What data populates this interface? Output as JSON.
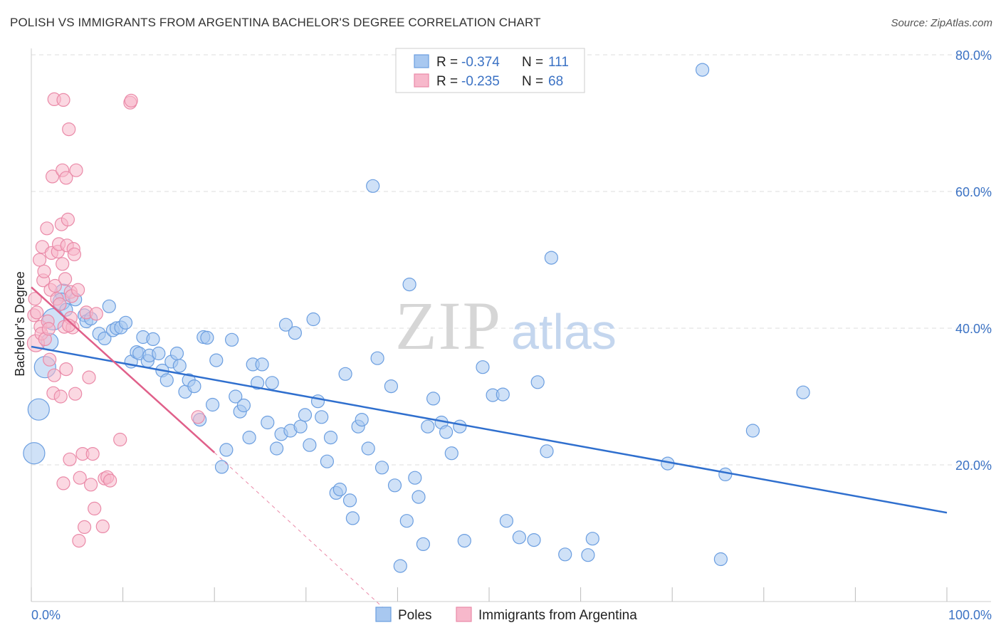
{
  "header": {
    "title": "POLISH VS IMMIGRANTS FROM ARGENTINA BACHELOR'S DEGREE CORRELATION CHART",
    "source": "Source: ZipAtlas.com"
  },
  "watermark": {
    "zip": "ZIP",
    "atlas": "atlas"
  },
  "colors": {
    "blue_fill": "#a8c8f0",
    "blue_stroke": "#6b9ee0",
    "blue_line": "#2f6fce",
    "pink_fill": "#f7b8cb",
    "pink_stroke": "#ea8aa8",
    "pink_line": "#e0608a",
    "grid": "#dddddd",
    "tick_label": "#3b72c4"
  },
  "chart_data": {
    "type": "scatter",
    "xlabel": "",
    "ylabel": "Bachelor's Degree",
    "xlim": [
      0,
      100
    ],
    "ylim": [
      0,
      80
    ],
    "x_tick_labels": [
      {
        "value": 0,
        "label": "0.0%"
      },
      {
        "value": 100,
        "label": "100.0%"
      }
    ],
    "y_tick_labels": [
      {
        "value": 20,
        "label": "20.0%"
      },
      {
        "value": 40,
        "label": "40.0%"
      },
      {
        "value": 60,
        "label": "60.0%"
      },
      {
        "value": 80,
        "label": "80.0%"
      }
    ],
    "gridlines": "horizontal dashed",
    "legend_position": "top-center",
    "stats": [
      {
        "r_label": "R =",
        "r": "-0.374",
        "n_label": "N =",
        "n": "111"
      },
      {
        "r_label": "R =",
        "r": "-0.235",
        "n_label": "N =",
        "n": "68"
      }
    ],
    "series": [
      {
        "name": "Poles",
        "color": "blue",
        "trendline": {
          "x": [
            0,
            100
          ],
          "y": [
            37.3,
            13.0
          ]
        },
        "points": [
          [
            0.3,
            21.7,
            2
          ],
          [
            0.8,
            28.1,
            2
          ],
          [
            1.5,
            34.3,
            2
          ],
          [
            2.0,
            38.0,
            1
          ],
          [
            2.4,
            41.3,
            2
          ],
          [
            3.5,
            45.2,
            1
          ],
          [
            3.3,
            43.9,
            1
          ],
          [
            3.8,
            42.7,
            0
          ],
          [
            4.8,
            44.2,
            0
          ],
          [
            5.8,
            41.9,
            0
          ],
          [
            6.0,
            41.0,
            0
          ],
          [
            6.5,
            41.4,
            0
          ],
          [
            7.4,
            39.2,
            0
          ],
          [
            8.0,
            38.5,
            0
          ],
          [
            8.5,
            43.2,
            0
          ],
          [
            8.9,
            39.7,
            0
          ],
          [
            9.3,
            40.0,
            0
          ],
          [
            9.8,
            40.1,
            0
          ],
          [
            10.3,
            40.8,
            0
          ],
          [
            10.9,
            35.1,
            0
          ],
          [
            11.5,
            36.5,
            0
          ],
          [
            11.8,
            36.3,
            0
          ],
          [
            12.2,
            38.7,
            0
          ],
          [
            12.7,
            35.2,
            0
          ],
          [
            12.9,
            36.0,
            0
          ],
          [
            13.3,
            38.4,
            0
          ],
          [
            13.9,
            36.3,
            0
          ],
          [
            14.3,
            33.8,
            0
          ],
          [
            14.8,
            32.4,
            0
          ],
          [
            15.3,
            35.1,
            0
          ],
          [
            15.9,
            36.3,
            0
          ],
          [
            16.2,
            34.5,
            0
          ],
          [
            16.8,
            30.7,
            0
          ],
          [
            17.2,
            32.4,
            0
          ],
          [
            17.8,
            31.5,
            0
          ],
          [
            18.4,
            26.6,
            0
          ],
          [
            18.8,
            38.7,
            0
          ],
          [
            19.2,
            38.6,
            0
          ],
          [
            19.8,
            28.8,
            0
          ],
          [
            20.2,
            35.3,
            0
          ],
          [
            20.8,
            19.7,
            0
          ],
          [
            21.3,
            22.2,
            0
          ],
          [
            21.9,
            38.3,
            0
          ],
          [
            22.3,
            30.0,
            0
          ],
          [
            22.8,
            27.8,
            0
          ],
          [
            23.2,
            28.7,
            0
          ],
          [
            23.8,
            24.0,
            0
          ],
          [
            24.2,
            34.7,
            0
          ],
          [
            24.7,
            32.0,
            0
          ],
          [
            25.2,
            34.7,
            0
          ],
          [
            25.8,
            26.2,
            0
          ],
          [
            26.3,
            32.0,
            0
          ],
          [
            26.8,
            22.4,
            0
          ],
          [
            27.3,
            24.5,
            0
          ],
          [
            27.8,
            40.5,
            0
          ],
          [
            28.3,
            25.0,
            0
          ],
          [
            28.8,
            39.3,
            0
          ],
          [
            29.4,
            25.6,
            0
          ],
          [
            29.9,
            27.3,
            0
          ],
          [
            30.4,
            22.9,
            0
          ],
          [
            30.8,
            41.3,
            0
          ],
          [
            31.3,
            29.3,
            0
          ],
          [
            31.7,
            27.0,
            0
          ],
          [
            32.3,
            20.5,
            0
          ],
          [
            32.7,
            24.0,
            0
          ],
          [
            33.3,
            15.9,
            0
          ],
          [
            33.7,
            16.4,
            0
          ],
          [
            34.3,
            33.3,
            0
          ],
          [
            34.8,
            14.8,
            0
          ],
          [
            35.1,
            12.2,
            0
          ],
          [
            35.7,
            25.6,
            0
          ],
          [
            36.1,
            26.6,
            0
          ],
          [
            36.8,
            22.4,
            0
          ],
          [
            37.3,
            60.8,
            0
          ],
          [
            37.8,
            35.6,
            0
          ],
          [
            38.3,
            19.6,
            0
          ],
          [
            39.3,
            31.5,
            0
          ],
          [
            39.7,
            17.0,
            0
          ],
          [
            40.3,
            5.2,
            0
          ],
          [
            41.0,
            11.8,
            0
          ],
          [
            41.3,
            46.4,
            0
          ],
          [
            41.9,
            18.1,
            0
          ],
          [
            42.3,
            15.3,
            0
          ],
          [
            42.8,
            8.4,
            0
          ],
          [
            43.3,
            25.6,
            0
          ],
          [
            43.9,
            29.7,
            0
          ],
          [
            44.8,
            26.2,
            0
          ],
          [
            45.3,
            24.8,
            0
          ],
          [
            45.9,
            21.7,
            0
          ],
          [
            46.8,
            25.6,
            0
          ],
          [
            47.3,
            8.9,
            0
          ],
          [
            49.3,
            34.3,
            0
          ],
          [
            50.4,
            30.2,
            0
          ],
          [
            51.5,
            30.3,
            0
          ],
          [
            51.9,
            11.8,
            0
          ],
          [
            53.3,
            9.4,
            0
          ],
          [
            54.9,
            9.0,
            0
          ],
          [
            56.8,
            50.3,
            0
          ],
          [
            55.3,
            32.1,
            0
          ],
          [
            56.3,
            22.0,
            0
          ],
          [
            58.3,
            6.9,
            0
          ],
          [
            60.8,
            6.8,
            0
          ],
          [
            61.3,
            9.2,
            0
          ],
          [
            69.5,
            20.2,
            0
          ],
          [
            73.3,
            77.8,
            0
          ],
          [
            75.3,
            6.2,
            0
          ],
          [
            75.8,
            18.6,
            0
          ],
          [
            78.8,
            25.0,
            0
          ],
          [
            84.3,
            30.6,
            0
          ]
        ]
      },
      {
        "name": "Immigrants from Argentina",
        "color": "pink",
        "trendline": {
          "x": [
            0,
            20
          ],
          "y": [
            46.0,
            21.8
          ]
        },
        "trendline_extension": {
          "x": [
            20,
            38.5
          ],
          "y": [
            21.8,
            -1.0
          ]
        },
        "points": [
          [
            0.3,
            41.9,
            0
          ],
          [
            0.4,
            44.3,
            0
          ],
          [
            0.5,
            37.8,
            1
          ],
          [
            0.6,
            42.3,
            0
          ],
          [
            0.9,
            50.0,
            0
          ],
          [
            1.0,
            40.2,
            0
          ],
          [
            1.1,
            39.2,
            0
          ],
          [
            1.2,
            51.9,
            0
          ],
          [
            1.3,
            47.0,
            0
          ],
          [
            1.4,
            48.3,
            0
          ],
          [
            1.5,
            38.4,
            0
          ],
          [
            1.7,
            54.6,
            0
          ],
          [
            1.8,
            41.0,
            0
          ],
          [
            1.9,
            39.9,
            0
          ],
          [
            2.1,
            45.6,
            0
          ],
          [
            2.2,
            51.0,
            0
          ],
          [
            2.3,
            62.2,
            0
          ],
          [
            2.4,
            30.5,
            0
          ],
          [
            2.5,
            33.1,
            0
          ],
          [
            2.5,
            73.5,
            0
          ],
          [
            2.6,
            46.2,
            0
          ],
          [
            2.8,
            44.3,
            0
          ],
          [
            2.9,
            51.2,
            0
          ],
          [
            3.0,
            52.3,
            0
          ],
          [
            3.1,
            43.5,
            0
          ],
          [
            3.2,
            30.0,
            0
          ],
          [
            3.3,
            55.2,
            0
          ],
          [
            3.4,
            63.1,
            0
          ],
          [
            3.4,
            49.4,
            0
          ],
          [
            3.5,
            73.4,
            0
          ],
          [
            3.5,
            17.3,
            0
          ],
          [
            3.6,
            40.2,
            0
          ],
          [
            3.7,
            47.2,
            0
          ],
          [
            3.8,
            62.0,
            0
          ],
          [
            3.9,
            52.1,
            0
          ],
          [
            4.0,
            55.9,
            0
          ],
          [
            4.1,
            69.1,
            0
          ],
          [
            4.2,
            20.8,
            0
          ],
          [
            4.3,
            45.3,
            0
          ],
          [
            4.4,
            44.7,
            0
          ],
          [
            4.5,
            40.1,
            0
          ],
          [
            4.6,
            51.6,
            0
          ],
          [
            4.7,
            50.8,
            0
          ],
          [
            4.8,
            30.4,
            0
          ],
          [
            4.9,
            63.1,
            0
          ],
          [
            5.1,
            45.6,
            0
          ],
          [
            5.2,
            8.9,
            0
          ],
          [
            5.3,
            18.1,
            0
          ],
          [
            5.6,
            21.6,
            0
          ],
          [
            5.8,
            10.9,
            0
          ],
          [
            6.0,
            42.3,
            0
          ],
          [
            6.3,
            32.8,
            0
          ],
          [
            6.5,
            17.1,
            0
          ],
          [
            6.7,
            21.6,
            0
          ],
          [
            6.9,
            13.6,
            0
          ],
          [
            7.1,
            42.1,
            0
          ],
          [
            7.8,
            11.0,
            0
          ],
          [
            8.0,
            18.0,
            0
          ],
          [
            8.3,
            18.2,
            0
          ],
          [
            8.6,
            17.7,
            0
          ],
          [
            9.7,
            23.7,
            0
          ],
          [
            10.8,
            73.0,
            0
          ],
          [
            10.9,
            73.3,
            0
          ],
          [
            18.2,
            27.0,
            0
          ],
          [
            2.0,
            35.4,
            0
          ],
          [
            4.3,
            41.5,
            0
          ],
          [
            3.8,
            34.0,
            0
          ],
          [
            4.1,
            40.4,
            0
          ]
        ]
      }
    ]
  }
}
